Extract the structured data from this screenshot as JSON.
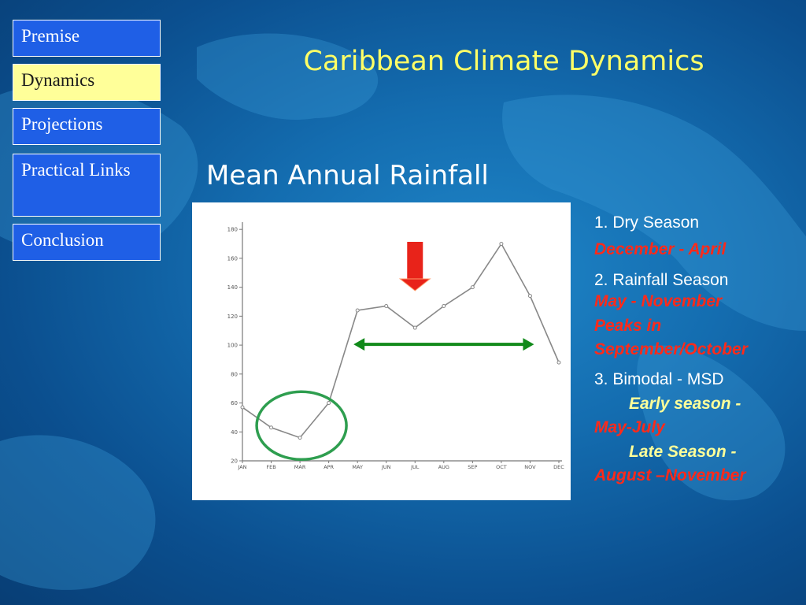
{
  "nav": {
    "items": [
      {
        "label": "Premise",
        "active": false
      },
      {
        "label": "Dynamics",
        "active": true
      },
      {
        "label": "Projections",
        "active": false
      },
      {
        "label": "Practical Links",
        "active": false
      },
      {
        "label": "Conclusion",
        "active": false
      }
    ]
  },
  "slide": {
    "title": "Caribbean Climate Dynamics",
    "subtitle": "Mean Annual Rainfall"
  },
  "notes": {
    "dry_heading": "1. Dry Season",
    "dry_range": "December - April",
    "rain_heading": "2. Rainfall Season",
    "rain_range": "May - November",
    "rain_peak_1": "Peaks in",
    "rain_peak_2": "September/October",
    "bimodal_heading": "3. Bimodal - MSD",
    "early_label": "Early season -",
    "early_range": "May-July",
    "late_label": "Late Season  -",
    "late_range": "August –November"
  },
  "chart_data": {
    "type": "line",
    "categories": [
      "JAN",
      "FEB",
      "MAR",
      "APR",
      "MAY",
      "JUN",
      "JUL",
      "AUG",
      "SEP",
      "OCT",
      "NOV",
      "DEC"
    ],
    "values": [
      57,
      43,
      36,
      60,
      124,
      127,
      112,
      127,
      140,
      170,
      134,
      88
    ],
    "yticks": [
      20,
      40,
      60,
      80,
      100,
      120,
      140,
      160,
      180
    ],
    "ylim": [
      20,
      185
    ],
    "title": "",
    "xlabel": "",
    "ylabel": "",
    "annotations": {
      "dry_circle": "green circle around FEB-APR",
      "msd_arrow": "red down arrow above JUL",
      "rainy_arrow": "green double-headed arrow from MAY to NOV"
    },
    "colors": {
      "line": "#888888",
      "circle": "#2e9e4f",
      "arrow_red": "#e8231a",
      "arrow_green": "#118a1a"
    }
  }
}
